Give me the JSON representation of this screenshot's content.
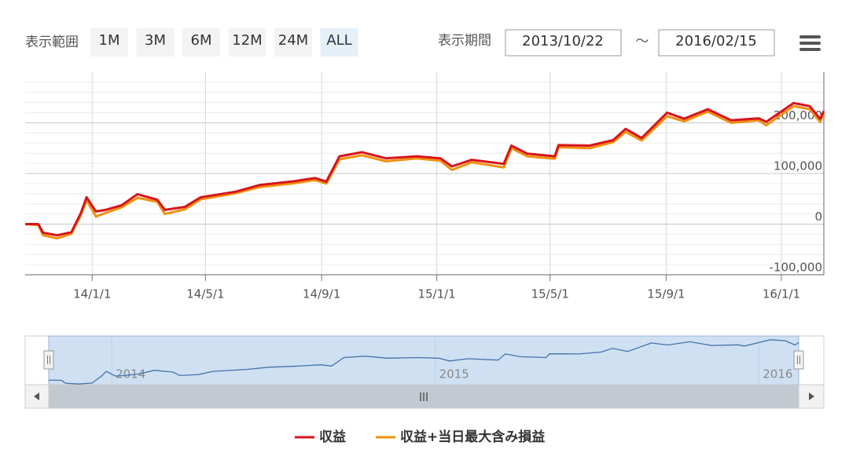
{
  "range_selector": {
    "label": "表示範囲",
    "buttons": [
      "1M",
      "3M",
      "6M",
      "12M",
      "24M",
      "ALL"
    ],
    "selected": 5
  },
  "period": {
    "label": "表示期間",
    "from": "2013/10/22",
    "separator": "〜",
    "to": "2016/02/15"
  },
  "chart_data": {
    "type": "line",
    "x": [
      "2013-10-22",
      "2013-11-05",
      "2013-11-10",
      "2013-11-25",
      "2013-12-10",
      "2013-12-20",
      "2013-12-26",
      "2014-01-05",
      "2014-01-15",
      "2014-02-01",
      "2014-02-18",
      "2014-03-11",
      "2014-03-19",
      "2014-04-09",
      "2014-04-26",
      "2014-06-02",
      "2014-06-27",
      "2014-07-31",
      "2014-08-25",
      "2014-09-06",
      "2014-09-20",
      "2014-10-14",
      "2014-11-08",
      "2014-12-11",
      "2015-01-05",
      "2015-01-17",
      "2015-02-07",
      "2015-03-13",
      "2015-03-21",
      "2015-04-07",
      "2015-05-06",
      "2015-05-10",
      "2015-06-12",
      "2015-07-07",
      "2015-07-20",
      "2015-08-06",
      "2015-09-02",
      "2015-09-20",
      "2015-10-15",
      "2015-11-09",
      "2015-12-08",
      "2015-12-16",
      "2016-01-14",
      "2016-01-31",
      "2016-02-11",
      "2016-02-15"
    ],
    "series": [
      {
        "name": "収益",
        "color": "#d7141b",
        "values": [
          0,
          0,
          -17000,
          -22000,
          -16000,
          22000,
          53000,
          25000,
          28000,
          37000,
          59000,
          48000,
          28000,
          34000,
          53000,
          64000,
          77000,
          84000,
          91000,
          84000,
          134000,
          142000,
          130000,
          134000,
          130000,
          114000,
          127000,
          119000,
          155000,
          139000,
          134000,
          156000,
          155000,
          166000,
          188000,
          170000,
          220000,
          208000,
          227000,
          205000,
          209000,
          202000,
          239000,
          233000,
          208000,
          223000
        ]
      },
      {
        "name": "収益+当日最大含み損益",
        "color": "#f0900f",
        "values": [
          0,
          -2000,
          -22000,
          -28000,
          -19000,
          18000,
          47000,
          15000,
          22000,
          33000,
          52000,
          44000,
          20000,
          29000,
          49000,
          61000,
          73000,
          80000,
          87000,
          80000,
          128000,
          136000,
          124000,
          130000,
          125000,
          107000,
          122000,
          112000,
          150000,
          134000,
          129000,
          152000,
          150000,
          162000,
          182000,
          165000,
          213000,
          203000,
          222000,
          200000,
          205000,
          195000,
          233000,
          227000,
          202000,
          218000
        ]
      }
    ],
    "xlim": [
      "2013-10-22",
      "2016-02-15"
    ],
    "xticks": [
      {
        "value": "2014-01-01",
        "label": "14/1/1"
      },
      {
        "value": "2014-05-01",
        "label": "14/5/1"
      },
      {
        "value": "2014-09-01",
        "label": "14/9/1"
      },
      {
        "value": "2015-01-01",
        "label": "15/1/1"
      },
      {
        "value": "2015-05-01",
        "label": "15/5/1"
      },
      {
        "value": "2015-09-01",
        "label": "15/9/1"
      },
      {
        "value": "2016-01-01",
        "label": "16/1/1"
      }
    ],
    "ylim": [
      -100000,
      300000
    ],
    "yticks": [
      {
        "value": -100000,
        "label": "-100,000"
      },
      0,
      {
        "value": 100000,
        "label": "100,000"
      },
      {
        "value": 200000,
        "label": "200,000"
      }
    ],
    "grid": true,
    "navigator": {
      "color": "#4572a7",
      "xticks": [
        {
          "value": "2014-01-01",
          "label": "2014"
        },
        {
          "value": "2015-01-01",
          "label": "2015"
        },
        {
          "value": "2016-01-01",
          "label": "2016"
        }
      ]
    }
  }
}
